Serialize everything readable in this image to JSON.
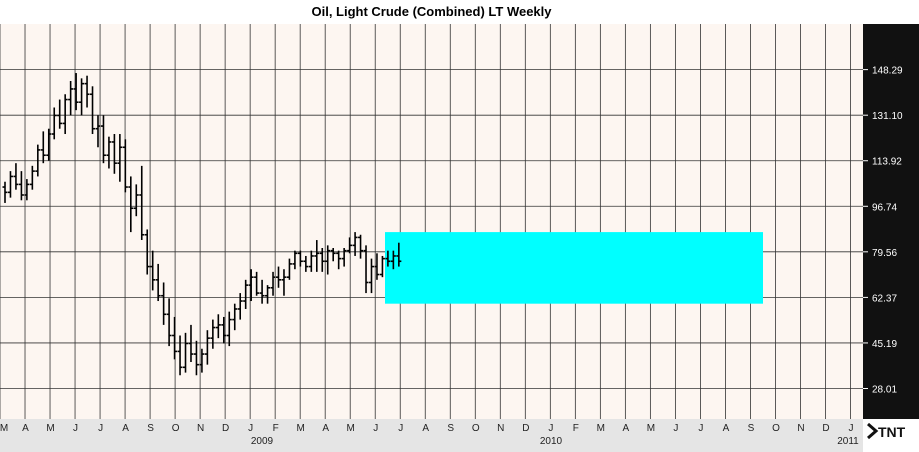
{
  "chart_data": {
    "type": "ohlc",
    "title": "Oil, Light Crude (Combined) LT Weekly",
    "y_tick_labels": [
      "148.29",
      "131.10",
      "113.92",
      "96.74",
      "79.56",
      "62.37",
      "45.19",
      "28.01"
    ],
    "ylim": [
      16.5,
      165.5
    ],
    "x_month_labels": [
      "M",
      "A",
      "M",
      "J",
      "J",
      "A",
      "S",
      "O",
      "N",
      "D",
      "J",
      "F",
      "M",
      "A",
      "M",
      "J",
      "J",
      "A",
      "S",
      "O",
      "N",
      "D",
      "J",
      "F",
      "M",
      "A",
      "M",
      "J",
      "J",
      "A",
      "S",
      "O",
      "N",
      "D",
      "J"
    ],
    "x_year_labels": [
      "2009",
      "2010",
      "2011"
    ],
    "grid": true,
    "highlight_zone": {
      "y_low": 60.0,
      "y_high": 87.0,
      "color": "#00ffff"
    },
    "colors": {
      "background": "#fdf6f1",
      "axis_panel": "#111111",
      "bars": "#000000",
      "grid": "#333333"
    },
    "bars": [
      [
        104,
        106,
        98,
        102
      ],
      [
        102,
        110,
        100,
        108
      ],
      [
        108,
        113,
        103,
        105
      ],
      [
        105,
        110,
        99,
        101
      ],
      [
        101,
        107,
        99,
        105
      ],
      [
        105,
        112,
        103,
        110
      ],
      [
        110,
        120,
        108,
        118
      ],
      [
        118,
        125,
        113,
        116
      ],
      [
        116,
        126,
        114,
        124
      ],
      [
        124,
        134,
        122,
        131
      ],
      [
        131,
        137,
        126,
        128
      ],
      [
        128,
        139,
        124,
        137
      ],
      [
        137,
        144,
        131,
        141
      ],
      [
        141,
        147,
        133,
        136
      ],
      [
        136,
        145,
        131,
        143
      ],
      [
        143,
        146,
        134,
        139
      ],
      [
        139,
        142,
        124,
        126
      ],
      [
        126,
        131,
        119,
        127
      ],
      [
        127,
        131,
        113,
        116
      ],
      [
        116,
        123,
        111,
        121
      ],
      [
        121,
        124,
        109,
        113
      ],
      [
        113,
        124,
        106,
        119
      ],
      [
        119,
        122,
        102,
        104
      ],
      [
        104,
        108,
        87,
        96
      ],
      [
        96,
        105,
        93,
        101
      ],
      [
        101,
        112,
        84,
        86
      ],
      [
        86,
        88,
        71,
        74
      ],
      [
        74,
        80,
        65,
        69
      ],
      [
        69,
        75,
        61,
        63
      ],
      [
        63,
        68,
        52,
        56
      ],
      [
        56,
        62,
        44,
        48
      ],
      [
        48,
        55,
        39,
        42
      ],
      [
        42,
        48,
        33,
        36
      ],
      [
        36,
        49,
        34,
        45
      ],
      [
        45,
        52,
        38,
        41
      ],
      [
        41,
        46,
        33,
        37
      ],
      [
        37,
        43,
        34,
        41
      ],
      [
        41,
        50,
        37,
        47
      ],
      [
        47,
        54,
        43,
        51
      ],
      [
        51,
        56,
        47,
        52
      ],
      [
        52,
        55,
        45,
        48
      ],
      [
        48,
        57,
        44,
        54
      ],
      [
        54,
        60,
        50,
        58
      ],
      [
        58,
        64,
        54,
        61
      ],
      [
        61,
        69,
        58,
        67
      ],
      [
        67,
        73,
        61,
        70
      ],
      [
        70,
        72,
        63,
        64
      ],
      [
        64,
        69,
        60,
        63
      ],
      [
        63,
        67,
        60,
        66
      ],
      [
        66,
        72,
        63,
        70
      ],
      [
        70,
        74,
        66,
        69
      ],
      [
        69,
        73,
        63,
        70
      ],
      [
        70,
        77,
        69,
        75
      ],
      [
        75,
        80,
        73,
        79
      ],
      [
        79,
        80,
        74,
        76
      ],
      [
        76,
        78,
        72,
        74
      ],
      [
        74,
        80,
        72,
        78
      ],
      [
        78,
        84,
        72,
        79
      ],
      [
        79,
        81,
        72,
        76
      ],
      [
        76,
        82,
        71,
        80
      ],
      [
        80,
        81,
        76,
        79
      ],
      [
        79,
        80,
        73,
        77
      ],
      [
        77,
        81,
        74,
        80
      ],
      [
        80,
        85,
        79,
        82
      ],
      [
        82,
        87,
        78,
        85
      ],
      [
        85,
        86,
        77,
        80
      ],
      [
        80,
        82,
        64,
        68
      ],
      [
        68,
        77,
        64,
        74
      ],
      [
        74,
        79,
        69,
        71
      ],
      [
        71,
        78,
        70,
        77
      ],
      [
        77,
        80,
        74,
        76
      ],
      [
        76,
        80,
        73,
        78
      ],
      [
        78,
        83,
        74,
        76
      ]
    ]
  }
}
